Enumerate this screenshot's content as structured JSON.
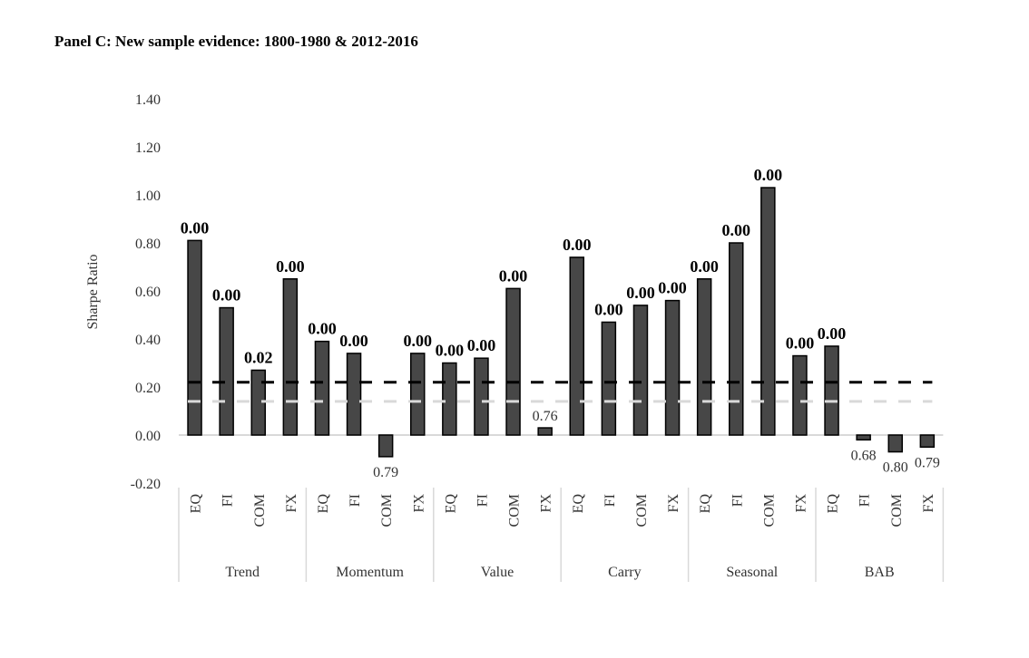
{
  "title": "Panel C: New sample evidence: 1800-1980 & 2012-2016",
  "chart_data": {
    "type": "bar",
    "title": "Panel C: New sample evidence: 1800-1980 & 2012-2016",
    "ylabel": "Sharpe Ratio",
    "xlabel": "",
    "ylim": [
      -0.2,
      1.4
    ],
    "yticks": [
      "-0.20",
      "0.00",
      "0.20",
      "0.40",
      "0.60",
      "0.80",
      "1.00",
      "1.20",
      "1.40"
    ],
    "groups": [
      "Trend",
      "Momentum",
      "Value",
      "Carry",
      "Seasonal",
      "BAB"
    ],
    "subcategories": [
      "EQ",
      "FI",
      "COM",
      "FX"
    ],
    "values": [
      0.81,
      0.53,
      0.27,
      0.65,
      0.39,
      0.34,
      -0.09,
      0.34,
      0.3,
      0.32,
      0.61,
      0.03,
      0.74,
      0.47,
      0.54,
      0.56,
      0.65,
      0.8,
      1.03,
      0.33,
      0.37,
      -0.02,
      -0.07,
      -0.05
    ],
    "p_value_labels": [
      "0.00",
      "0.00",
      "0.02",
      "0.00",
      "0.00",
      "0.00",
      "0.79",
      "0.00",
      "0.00",
      "0.00",
      "0.00",
      "0.76",
      "0.00",
      "0.00",
      "0.00",
      "0.00",
      "0.00",
      "0.00",
      "0.00",
      "0.00",
      "0.00",
      "0.68",
      "0.80",
      "0.79"
    ],
    "reference_lines": [
      {
        "value": 0.22,
        "style": "dashed",
        "color": "#000000"
      },
      {
        "value": 0.14,
        "style": "dashed",
        "color": "#d9d9d9"
      }
    ],
    "bar_color": "#474747",
    "grid": false
  }
}
